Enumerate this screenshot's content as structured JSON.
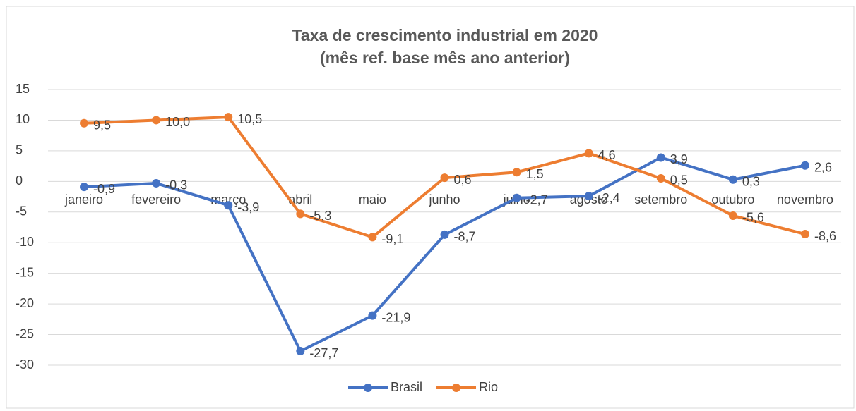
{
  "chart_data": {
    "type": "line",
    "title": "Taxa de crescimento industrial em 2020",
    "subtitle": "(mês ref. base mês ano anterior)",
    "categories": [
      "janeiro",
      "fevereiro",
      "março",
      "abril",
      "maio",
      "junho",
      "julho",
      "agosto",
      "setembro",
      "outubro",
      "novembro"
    ],
    "series": [
      {
        "name": "Brasil",
        "color": "#4472c4",
        "values": [
          -0.9,
          -0.3,
          -3.9,
          -27.7,
          -21.9,
          -8.7,
          -2.7,
          -2.4,
          3.9,
          0.3,
          2.6
        ],
        "value_labels": [
          "-0,9",
          "-0,3",
          "-3,9",
          "-27,7",
          "-21,9",
          "-8,7",
          "-2,7",
          "-2,4",
          "3,9",
          "0,3",
          "2,6"
        ]
      },
      {
        "name": "Rio",
        "color": "#ed7d31",
        "values": [
          9.5,
          10.0,
          10.5,
          -5.3,
          -9.1,
          0.6,
          1.5,
          4.6,
          0.5,
          -5.6,
          -8.6
        ],
        "value_labels": [
          "9,5",
          "10,0",
          "10,5",
          "-5,3",
          "-9,1",
          "0,6",
          "1,5",
          "4,6",
          "0,5",
          "-5,6",
          "-8,6"
        ]
      }
    ],
    "ylim": [
      -30,
      15
    ],
    "yticks": [
      15,
      10,
      5,
      0,
      -5,
      -10,
      -15,
      -20,
      -25,
      -30
    ],
    "grid": true,
    "legend": "bottom"
  }
}
